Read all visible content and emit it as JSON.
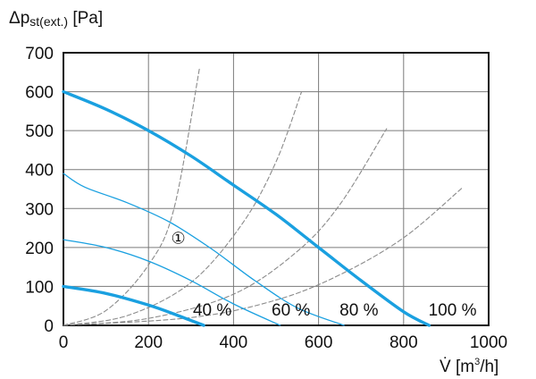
{
  "chart_data": {
    "type": "line",
    "title": "",
    "ylabel": {
      "prefix": "Δp",
      "sub": "st(ext.)",
      "suffix": " [Pa]"
    },
    "xlabel": {
      "prefix": "V̇ [m",
      "sup": "3",
      "suffix": "/h]"
    },
    "xlim": [
      0,
      1000
    ],
    "ylim": [
      0,
      700
    ],
    "x_ticks": [
      0,
      200,
      400,
      600,
      800,
      1000
    ],
    "y_ticks": [
      0,
      100,
      200,
      300,
      400,
      500,
      600,
      700
    ],
    "grid": true,
    "legend": "none",
    "series": [
      {
        "style": "thick-blue",
        "color": "#1aa0e0",
        "x": [
          0,
          100,
          200,
          300,
          400,
          500,
          600,
          700,
          800,
          860
        ],
        "y": [
          600,
          555,
          500,
          435,
          360,
          285,
          200,
          115,
          35,
          0
        ]
      },
      {
        "style": "thin-blue",
        "color": "#1aa0e0",
        "x": [
          0,
          50,
          150,
          250,
          350,
          450,
          550,
          660
        ],
        "y": [
          390,
          355,
          315,
          265,
          195,
          115,
          45,
          0
        ]
      },
      {
        "style": "thin-blue",
        "color": "#1aa0e0",
        "x": [
          0,
          100,
          200,
          300,
          400,
          510
        ],
        "y": [
          220,
          200,
          165,
          115,
          55,
          0
        ]
      },
      {
        "style": "thick-blue",
        "color": "#1aa0e0",
        "x": [
          0,
          100,
          200,
          270,
          330
        ],
        "y": [
          100,
          82,
          52,
          25,
          0
        ]
      },
      {
        "style": "dashed-grey",
        "color": "#8a8a8a",
        "x": [
          0,
          100,
          200,
          260,
          320
        ],
        "y": [
          0,
          38,
          155,
          300,
          660
        ]
      },
      {
        "style": "dashed-grey",
        "color": "#8a8a8a",
        "x": [
          0,
          150,
          300,
          420,
          500,
          560
        ],
        "y": [
          0,
          25,
          110,
          260,
          420,
          600
        ]
      },
      {
        "style": "dashed-grey",
        "color": "#8a8a8a",
        "x": [
          0,
          200,
          400,
          550,
          650,
          760
        ],
        "y": [
          0,
          18,
          80,
          190,
          310,
          505
        ]
      },
      {
        "style": "dashed-grey",
        "color": "#8a8a8a",
        "x": [
          0,
          300,
          500,
          650,
          800,
          940
        ],
        "y": [
          0,
          20,
          65,
          130,
          225,
          355
        ]
      }
    ],
    "annotations": [
      {
        "text": "40 %",
        "x": 350,
        "y": 25
      },
      {
        "text": "60 %",
        "x": 535,
        "y": 25
      },
      {
        "text": "80 %",
        "x": 695,
        "y": 25
      },
      {
        "text": "100 %",
        "x": 915,
        "y": 25
      },
      {
        "text": "①",
        "x": 270,
        "y": 210
      }
    ]
  }
}
